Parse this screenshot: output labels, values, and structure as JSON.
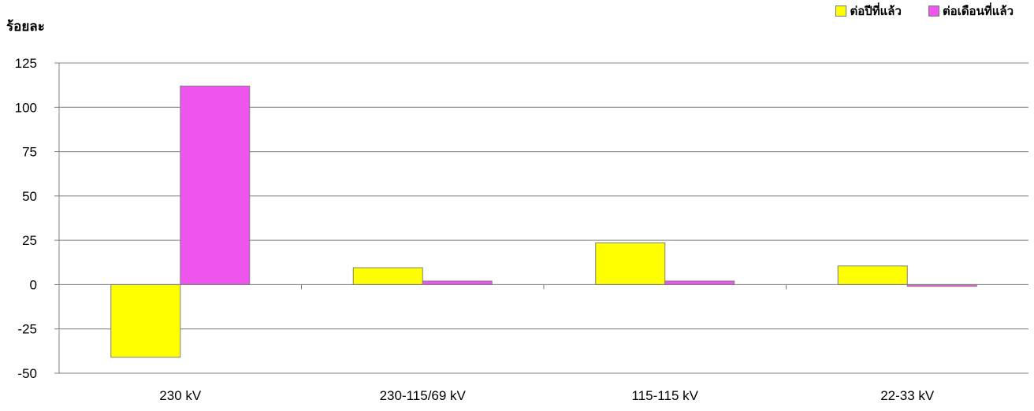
{
  "chart_data": {
    "type": "bar",
    "ylabel": "ร้อยละ",
    "categories": [
      "230 kV",
      "230-115/69 kV",
      "115-115 kV",
      "22-33 kV"
    ],
    "series": [
      {
        "name": "ต่อปีที่แล้ว",
        "color": "#ffff00",
        "values": [
          -41,
          9.5,
          23.5,
          10.5
        ]
      },
      {
        "name": "ต่อเดือนที่แล้ว",
        "color": "#ee55ee",
        "values": [
          112,
          2,
          2,
          -1
        ]
      }
    ],
    "yticks": [
      125,
      100,
      75,
      50,
      25,
      0,
      -25,
      -50
    ],
    "ylim": [
      -50,
      125
    ],
    "grid": true,
    "legend_position": "top-right"
  }
}
